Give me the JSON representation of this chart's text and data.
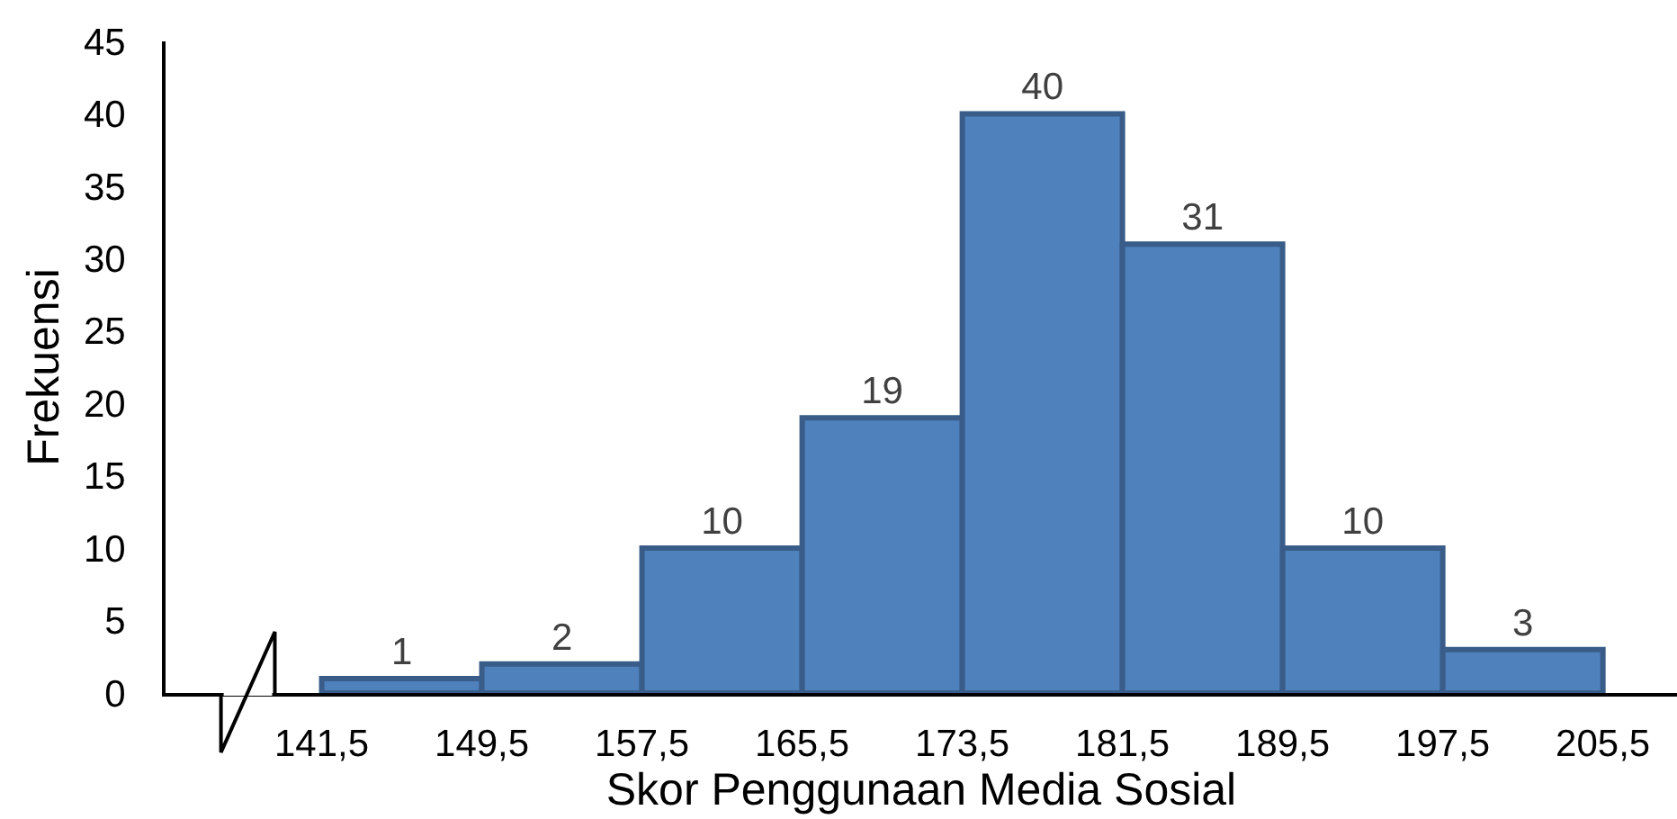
{
  "chart_data": {
    "type": "histogram",
    "xlabel": "Skor Penggunaan Media Sosial",
    "ylabel": "Frekuensi",
    "bins": [
      141.5,
      149.5,
      157.5,
      165.5,
      173.5,
      181.5,
      189.5,
      197.5,
      205.5
    ],
    "values": [
      1,
      2,
      10,
      19,
      40,
      31,
      10,
      3
    ],
    "color": "#4f81bd",
    "xlim": [
      133.7,
      209.2
    ],
    "xticks": [
      {
        "value": 141.5,
        "label": "141,5"
      },
      {
        "value": 149.5,
        "label": "149,5"
      },
      {
        "value": 157.5,
        "label": "157,5"
      },
      {
        "value": 165.5,
        "label": "165,5"
      },
      {
        "value": 173.5,
        "label": "173,5"
      },
      {
        "value": 181.5,
        "label": "181,5"
      },
      {
        "value": 189.5,
        "label": "189,5"
      },
      {
        "value": 197.5,
        "label": "197,5"
      },
      {
        "value": 205.5,
        "label": "205,5"
      }
    ],
    "ylim": [
      0,
      45
    ],
    "yticks": [
      0,
      5,
      10,
      15,
      20,
      25,
      30,
      35,
      40,
      45
    ],
    "data_labels": true,
    "grid": false
  }
}
